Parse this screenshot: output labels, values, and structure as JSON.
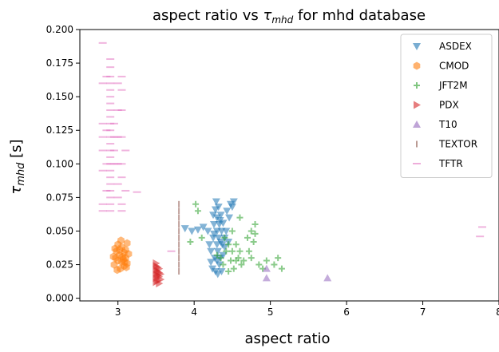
{
  "chart_data": {
    "type": "scatter",
    "title": {
      "prefix": "aspect ratio vs ",
      "tau": "τ",
      "sub": "mhd",
      "suffix": " for mhd database"
    },
    "xlabel": "aspect ratio",
    "ylabel": {
      "tau": "τ",
      "sub": "mhd",
      "unit": "[s]"
    },
    "xlim": [
      2.5,
      8.0
    ],
    "ylim": [
      -0.002,
      0.2
    ],
    "x_ticks": [
      "3",
      "4",
      "5",
      "6",
      "7",
      "8"
    ],
    "y_ticks": [
      "0.000",
      "0.025",
      "0.050",
      "0.075",
      "0.100",
      "0.125",
      "0.150",
      "0.175",
      "0.200"
    ],
    "grid": false,
    "legend_position": "top-right",
    "series": [
      {
        "name": "ASDEX",
        "marker": "triangle-down",
        "color": "#1f77b4",
        "points": [
          [
            3.88,
            0.052
          ],
          [
            3.97,
            0.05
          ],
          [
            4.05,
            0.051
          ],
          [
            4.12,
            0.053
          ],
          [
            4.18,
            0.05
          ],
          [
            4.2,
            0.04
          ],
          [
            4.22,
            0.035
          ],
          [
            4.22,
            0.027
          ],
          [
            4.25,
            0.045
          ],
          [
            4.25,
            0.062
          ],
          [
            4.26,
            0.055
          ],
          [
            4.27,
            0.03
          ],
          [
            4.28,
            0.066
          ],
          [
            4.29,
            0.072
          ],
          [
            4.3,
            0.04
          ],
          [
            4.3,
            0.05
          ],
          [
            4.3,
            0.06
          ],
          [
            4.31,
            0.035
          ],
          [
            4.32,
            0.068
          ],
          [
            4.32,
            0.045
          ],
          [
            4.33,
            0.055
          ],
          [
            4.33,
            0.025
          ],
          [
            4.34,
            0.03
          ],
          [
            4.35,
            0.042
          ],
          [
            4.35,
            0.062
          ],
          [
            4.36,
            0.05
          ],
          [
            4.37,
            0.04
          ],
          [
            4.38,
            0.056
          ],
          [
            4.38,
            0.032
          ],
          [
            4.4,
            0.045
          ],
          [
            4.4,
            0.038
          ],
          [
            4.42,
            0.05
          ],
          [
            4.43,
            0.065
          ],
          [
            4.45,
            0.042
          ],
          [
            4.48,
            0.07
          ],
          [
            4.5,
            0.068
          ],
          [
            4.52,
            0.072
          ],
          [
            4.28,
            0.02
          ],
          [
            4.31,
            0.018
          ],
          [
            4.24,
            0.022
          ],
          [
            4.36,
            0.02
          ],
          [
            4.46,
            0.06
          ],
          [
            4.26,
            0.048
          ],
          [
            4.34,
            0.058
          ],
          [
            4.3,
            0.028
          ]
        ]
      },
      {
        "name": "CMOD",
        "marker": "hexagon",
        "color": "#ff7f0e",
        "points": [
          [
            2.95,
            0.025
          ],
          [
            2.97,
            0.03
          ],
          [
            2.98,
            0.035
          ],
          [
            3.0,
            0.028
          ],
          [
            3.0,
            0.04
          ],
          [
            3.02,
            0.032
          ],
          [
            3.03,
            0.022
          ],
          [
            3.05,
            0.027
          ],
          [
            3.05,
            0.038
          ],
          [
            3.06,
            0.031
          ],
          [
            3.08,
            0.024
          ],
          [
            3.08,
            0.034
          ],
          [
            3.1,
            0.03
          ],
          [
            3.1,
            0.036
          ],
          [
            3.12,
            0.041
          ],
          [
            3.12,
            0.026
          ],
          [
            3.14,
            0.033
          ],
          [
            2.96,
            0.037
          ],
          [
            2.99,
            0.021
          ],
          [
            3.04,
            0.043
          ],
          [
            3.07,
            0.029
          ],
          [
            3.11,
            0.023
          ],
          [
            3.02,
            0.036
          ],
          [
            2.94,
            0.031
          ],
          [
            3.09,
            0.027
          ]
        ]
      },
      {
        "name": "JFT2M",
        "marker": "plus",
        "color": "#2ca02c",
        "points": [
          [
            3.95,
            0.042
          ],
          [
            4.02,
            0.07
          ],
          [
            4.05,
            0.065
          ],
          [
            4.1,
            0.045
          ],
          [
            4.3,
            0.032
          ],
          [
            4.35,
            0.03
          ],
          [
            4.38,
            0.025
          ],
          [
            4.4,
            0.045
          ],
          [
            4.42,
            0.035
          ],
          [
            4.45,
            0.04
          ],
          [
            4.45,
            0.02
          ],
          [
            4.48,
            0.028
          ],
          [
            4.5,
            0.05
          ],
          [
            4.5,
            0.035
          ],
          [
            4.52,
            0.022
          ],
          [
            4.55,
            0.04
          ],
          [
            4.55,
            0.028
          ],
          [
            4.58,
            0.03
          ],
          [
            4.6,
            0.035
          ],
          [
            4.62,
            0.025
          ],
          [
            4.65,
            0.028
          ],
          [
            4.7,
            0.045
          ],
          [
            4.72,
            0.035
          ],
          [
            4.75,
            0.05
          ],
          [
            4.75,
            0.03
          ],
          [
            4.78,
            0.042
          ],
          [
            4.8,
            0.048
          ],
          [
            4.85,
            0.025
          ],
          [
            4.9,
            0.022
          ],
          [
            4.95,
            0.028
          ],
          [
            5.05,
            0.025
          ],
          [
            5.1,
            0.03
          ],
          [
            5.15,
            0.022
          ],
          [
            4.6,
            0.06
          ],
          [
            4.8,
            0.055
          ]
        ]
      },
      {
        "name": "PDX",
        "marker": "triangle-right",
        "color": "#d62728",
        "points": [
          [
            3.5,
            0.012
          ],
          [
            3.5,
            0.015
          ],
          [
            3.5,
            0.018
          ],
          [
            3.5,
            0.021
          ],
          [
            3.5,
            0.024
          ],
          [
            3.5,
            0.026
          ],
          [
            3.52,
            0.013
          ],
          [
            3.52,
            0.017
          ],
          [
            3.52,
            0.02
          ],
          [
            3.52,
            0.023
          ],
          [
            3.54,
            0.011
          ],
          [
            3.54,
            0.016
          ],
          [
            3.54,
            0.019
          ],
          [
            3.54,
            0.022
          ],
          [
            3.56,
            0.014
          ],
          [
            3.56,
            0.018
          ]
        ]
      },
      {
        "name": "T10",
        "marker": "triangle-up",
        "color": "#9467bd",
        "points": [
          [
            4.95,
            0.022
          ],
          [
            4.95,
            0.015
          ],
          [
            5.75,
            0.015
          ]
        ]
      },
      {
        "name": "TEXTOR",
        "marker": "vline",
        "color": "#8c564b",
        "points": [
          [
            3.8,
            0.02
          ],
          [
            3.8,
            0.025
          ],
          [
            3.8,
            0.03
          ],
          [
            3.8,
            0.035
          ],
          [
            3.8,
            0.04
          ],
          [
            3.8,
            0.045
          ],
          [
            3.8,
            0.05
          ],
          [
            3.8,
            0.055
          ],
          [
            3.8,
            0.06
          ],
          [
            3.8,
            0.065
          ],
          [
            3.8,
            0.07
          ]
        ]
      },
      {
        "name": "TFTR",
        "marker": "hline",
        "color": "#e377c2",
        "points": [
          [
            2.8,
            0.19
          ],
          [
            2.8,
            0.16
          ],
          [
            2.8,
            0.13
          ],
          [
            2.8,
            0.12
          ],
          [
            2.8,
            0.11
          ],
          [
            2.8,
            0.095
          ],
          [
            2.8,
            0.07
          ],
          [
            2.8,
            0.065
          ],
          [
            2.85,
            0.165
          ],
          [
            2.85,
            0.125
          ],
          [
            2.85,
            0.1
          ],
          [
            2.85,
            0.08
          ],
          [
            2.9,
            0.178
          ],
          [
            2.9,
            0.172
          ],
          [
            2.9,
            0.165
          ],
          [
            2.9,
            0.16
          ],
          [
            2.9,
            0.155
          ],
          [
            2.9,
            0.15
          ],
          [
            2.9,
            0.145
          ],
          [
            2.9,
            0.14
          ],
          [
            2.9,
            0.135
          ],
          [
            2.9,
            0.13
          ],
          [
            2.9,
            0.125
          ],
          [
            2.9,
            0.12
          ],
          [
            2.9,
            0.115
          ],
          [
            2.9,
            0.11
          ],
          [
            2.9,
            0.105
          ],
          [
            2.9,
            0.1
          ],
          [
            2.9,
            0.095
          ],
          [
            2.9,
            0.09
          ],
          [
            2.9,
            0.085
          ],
          [
            2.9,
            0.08
          ],
          [
            2.9,
            0.075
          ],
          [
            2.9,
            0.07
          ],
          [
            2.9,
            0.065
          ],
          [
            2.95,
            0.13
          ],
          [
            2.95,
            0.12
          ],
          [
            2.95,
            0.11
          ],
          [
            2.95,
            0.1
          ],
          [
            3.0,
            0.16
          ],
          [
            3.0,
            0.14
          ],
          [
            3.0,
            0.12
          ],
          [
            3.0,
            0.1
          ],
          [
            3.0,
            0.085
          ],
          [
            3.0,
            0.075
          ],
          [
            3.05,
            0.165
          ],
          [
            3.05,
            0.155
          ],
          [
            3.05,
            0.14
          ],
          [
            3.05,
            0.12
          ],
          [
            3.05,
            0.1
          ],
          [
            3.05,
            0.09
          ],
          [
            3.05,
            0.07
          ],
          [
            3.05,
            0.065
          ],
          [
            3.1,
            0.11
          ],
          [
            3.1,
            0.08
          ],
          [
            3.25,
            0.079
          ],
          [
            3.7,
            0.035
          ],
          [
            7.75,
            0.046
          ],
          [
            7.78,
            0.053
          ]
        ]
      }
    ]
  }
}
